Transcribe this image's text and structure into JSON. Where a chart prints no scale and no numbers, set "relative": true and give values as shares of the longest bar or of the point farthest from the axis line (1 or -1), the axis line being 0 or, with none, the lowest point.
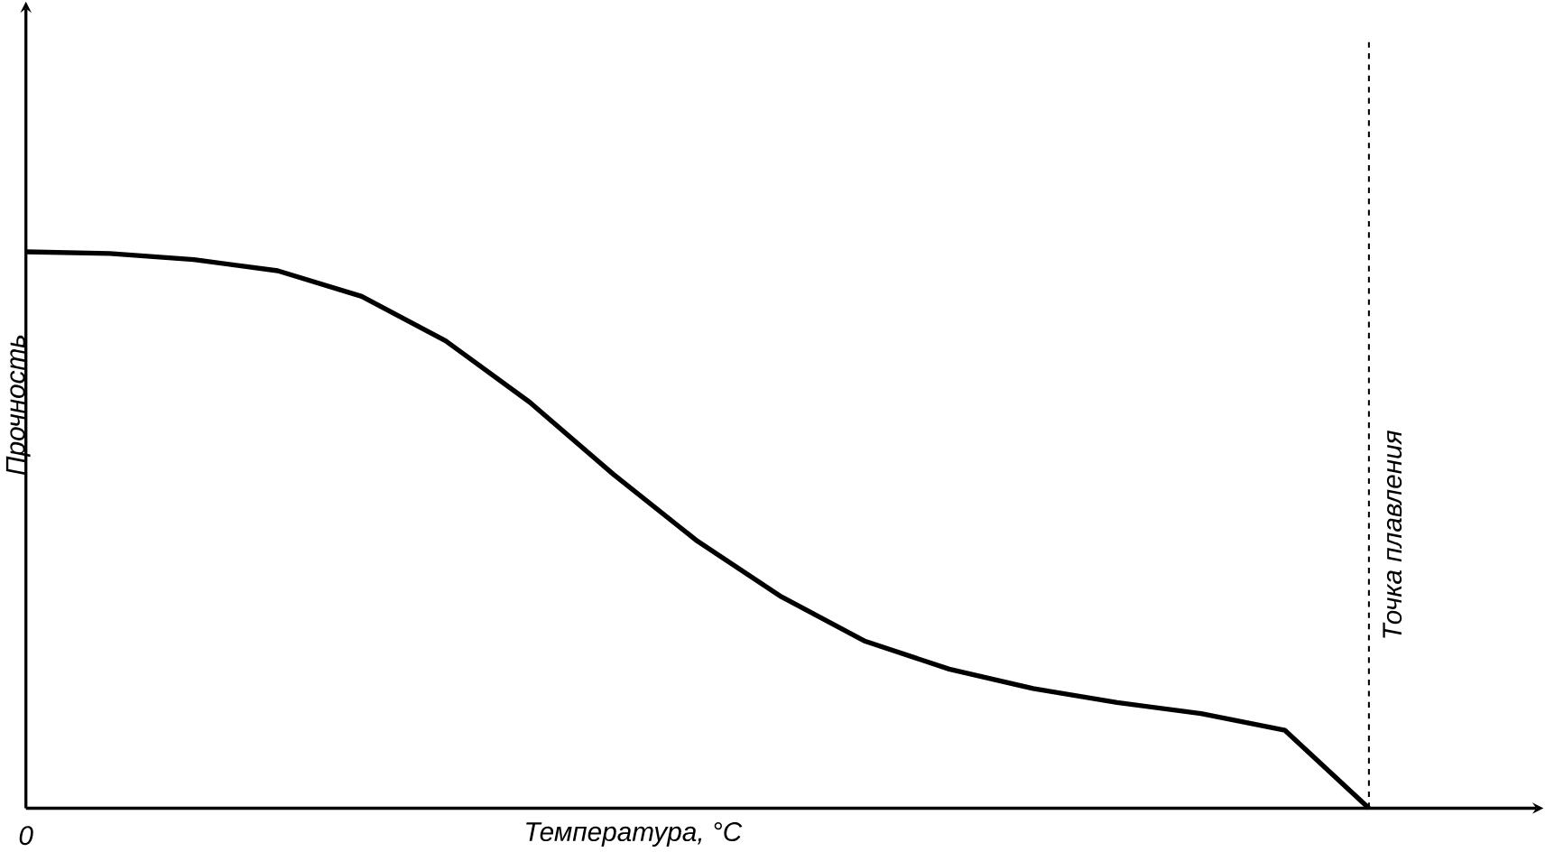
{
  "chart_data": {
    "type": "line",
    "xlabel": "Температура, °C",
    "ylabel": "Прочность",
    "relative": true,
    "color": "#000000",
    "line_style": "solid",
    "marker": "none",
    "annotations": [
      "0",
      "Точка плавления"
    ],
    "categories": [
      null,
      null,
      null,
      null,
      null,
      null,
      null,
      null,
      null,
      null,
      null,
      null,
      null,
      null,
      null,
      null,
      null
    ],
    "values": [
      1.0,
      0.997,
      0.986,
      0.966,
      0.92,
      0.84,
      0.73,
      0.6,
      0.48,
      0.38,
      0.3,
      0.25,
      0.215,
      0.19,
      0.17,
      0.14,
      0
    ]
  }
}
